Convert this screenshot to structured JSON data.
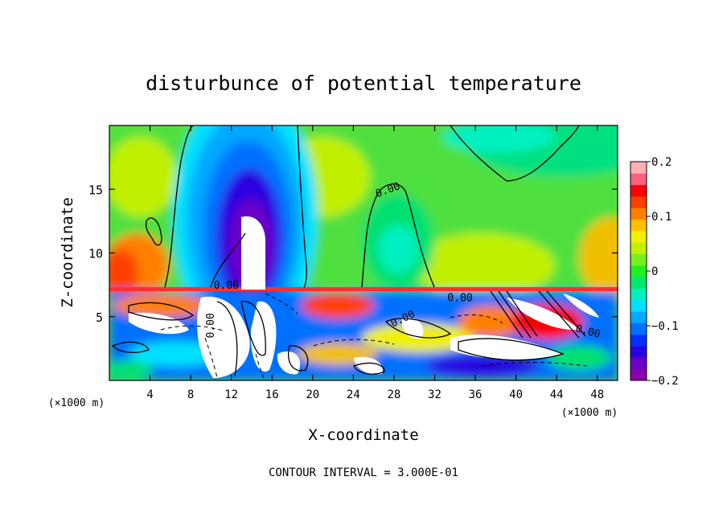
{
  "chart_data": {
    "type": "heatmap",
    "title": "disturbunce of potential temperature",
    "xlabel": "X-coordinate",
    "ylabel": "Z-coordinate",
    "x_unit": "(×1000 m)",
    "y_unit": "(×1000 m)",
    "xlim": [
      0,
      50
    ],
    "ylim": [
      0,
      20
    ],
    "x_ticks": [
      4,
      8,
      12,
      16,
      20,
      24,
      28,
      32,
      36,
      40,
      44,
      48
    ],
    "y_ticks": [
      5,
      10,
      15
    ],
    "colorbar": {
      "range": [
        -0.2,
        0.2
      ],
      "ticks": [
        0.2,
        0.1,
        0,
        -0.1,
        -0.2
      ],
      "tick_labels": [
        "0.2",
        "0.1",
        "0",
        "−0.1",
        "−0.2"
      ],
      "colors": [
        "#8b00a8",
        "#6a00c8",
        "#2a00e0",
        "#0030ff",
        "#0070ff",
        "#00a8ff",
        "#00e0ff",
        "#00f0c0",
        "#00e870",
        "#20f020",
        "#78f020",
        "#c0f000",
        "#f0f000",
        "#ffc000",
        "#ff8000",
        "#ff4000",
        "#ff0000",
        "#ff6080",
        "#ffb0b0"
      ]
    },
    "contour_labels": [
      "0.00",
      "0.00",
      "0.00",
      "0.00",
      "0.00",
      "0.00"
    ],
    "footer": "CONTOUR INTERVAL = 3.000E-01"
  }
}
